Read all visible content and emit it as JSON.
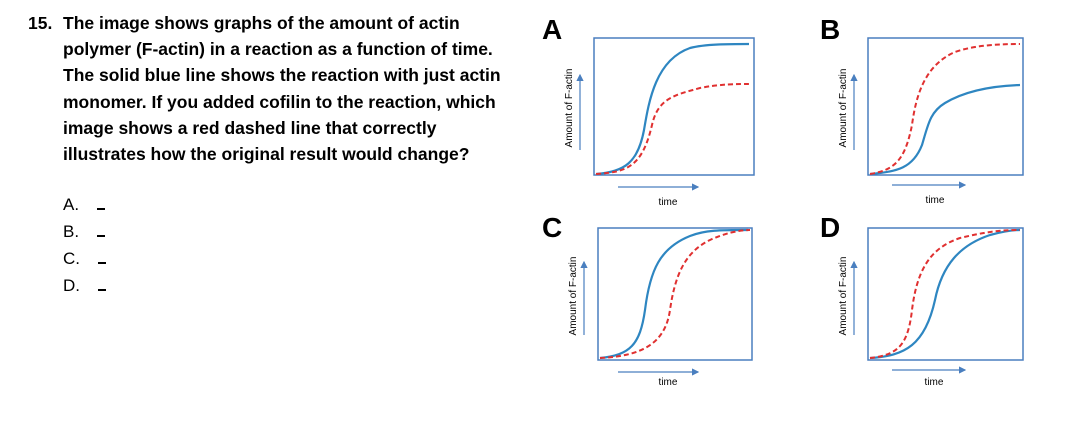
{
  "question": {
    "number": "15.",
    "text": "The image shows graphs of the amount of actin polymer (F-actin) in a reaction as a function of time. The solid blue line shows the reaction with just actin monomer. If you added cofilin to the reaction, which image shows a red dashed line that correctly illustrates how the original result would change?"
  },
  "options": [
    {
      "label": "A.",
      "blank": "_"
    },
    {
      "label": "B.",
      "blank": "_"
    },
    {
      "label": "C.",
      "blank": "_"
    },
    {
      "label": "D.",
      "blank": "_"
    }
  ],
  "panels": [
    {
      "letter": "A",
      "xlabel": "time",
      "ylabel": "Amount of F-actin"
    },
    {
      "letter": "B",
      "xlabel": "time",
      "ylabel": "Amount of F-actin"
    },
    {
      "letter": "C",
      "xlabel": "time",
      "ylabel": "Amount of F-actin"
    },
    {
      "letter": "D",
      "xlabel": "time",
      "ylabel": "Amount of F-actin"
    }
  ],
  "colors": {
    "blue_solid": "#2e86c1",
    "red_dashed": "#e03030",
    "frame": "#4a7fbf"
  }
}
